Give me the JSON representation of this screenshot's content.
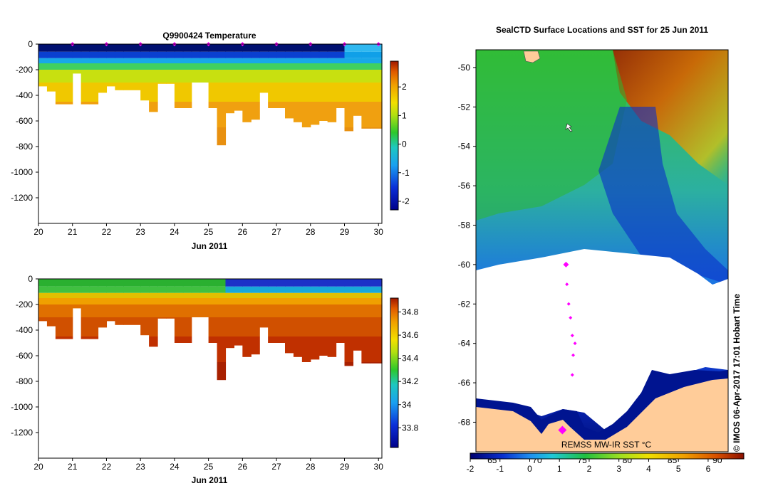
{
  "chart_data": [
    {
      "type": "heatmap",
      "title": "Q9900424  Temperature",
      "xlabel": "Jun 2011",
      "ylabel": "",
      "x_ticks": [
        "20",
        "21",
        "22",
        "23",
        "24",
        "25",
        "26",
        "27",
        "28",
        "29",
        "30"
      ],
      "x_range": [
        20,
        30.1
      ],
      "y_ticks": [
        "0",
        "-200",
        "-400",
        "-600",
        "-800",
        "-1000",
        "-1200"
      ],
      "y_range": [
        -1400,
        0
      ],
      "colorbar_ticks": [
        "-2",
        "-1",
        "0",
        "1",
        "2"
      ],
      "colorbar_range": [
        -2.3,
        2.9
      ],
      "profiles": [
        {
          "t": 20.0,
          "bottom": -330
        },
        {
          "t": 20.25,
          "bottom": -370
        },
        {
          "t": 20.5,
          "bottom": -470
        },
        {
          "t": 21.0,
          "bottom": -230
        },
        {
          "t": 21.25,
          "bottom": -470
        },
        {
          "t": 21.5,
          "bottom": -470
        },
        {
          "t": 21.75,
          "bottom": -380
        },
        {
          "t": 22.0,
          "bottom": -330
        },
        {
          "t": 22.25,
          "bottom": -360
        },
        {
          "t": 22.5,
          "bottom": -360
        },
        {
          "t": 23.0,
          "bottom": -440
        },
        {
          "t": 23.25,
          "bottom": -530
        },
        {
          "t": 23.5,
          "bottom": -310
        },
        {
          "t": 23.75,
          "bottom": -310
        },
        {
          "t": 24.0,
          "bottom": -500
        },
        {
          "t": 24.25,
          "bottom": -500
        },
        {
          "t": 24.5,
          "bottom": -300
        },
        {
          "t": 24.75,
          "bottom": -300
        },
        {
          "t": 25.0,
          "bottom": -500
        },
        {
          "t": 25.25,
          "bottom": -790
        },
        {
          "t": 25.5,
          "bottom": -540
        },
        {
          "t": 25.75,
          "bottom": -520
        },
        {
          "t": 26.0,
          "bottom": -610
        },
        {
          "t": 26.25,
          "bottom": -590
        },
        {
          "t": 26.5,
          "bottom": -380
        },
        {
          "t": 26.75,
          "bottom": -500
        },
        {
          "t": 27.0,
          "bottom": -500
        },
        {
          "t": 27.25,
          "bottom": -580
        },
        {
          "t": 27.5,
          "bottom": -610
        },
        {
          "t": 27.75,
          "bottom": -650
        },
        {
          "t": 28.0,
          "bottom": -630
        },
        {
          "t": 28.25,
          "bottom": -600
        },
        {
          "t": 28.5,
          "bottom": -610
        },
        {
          "t": 28.75,
          "bottom": -500
        },
        {
          "t": 29.0,
          "bottom": -680
        },
        {
          "t": 29.25,
          "bottom": -560
        },
        {
          "t": 29.5,
          "bottom": -660
        },
        {
          "t": 29.75,
          "bottom": -660
        }
      ],
      "surface_markers": [
        21,
        22,
        23,
        24,
        25,
        26,
        27,
        28,
        29,
        30
      ]
    },
    {
      "type": "heatmap",
      "title": "",
      "xlabel": "Jun 2011",
      "ylabel": "",
      "x_ticks": [
        "20",
        "21",
        "22",
        "23",
        "24",
        "25",
        "26",
        "27",
        "28",
        "29",
        "30"
      ],
      "x_range": [
        20,
        30.1
      ],
      "y_ticks": [
        "0",
        "-200",
        "-400",
        "-600",
        "-800",
        "-1000",
        "-1200"
      ],
      "y_range": [
        -1400,
        0
      ],
      "colorbar_ticks": [
        "33.8",
        "34",
        "34.2",
        "34.4",
        "34.6",
        "34.8"
      ],
      "colorbar_range": [
        33.63,
        34.92
      ]
    },
    {
      "type": "heatmap",
      "title": "SealCTD Surface Locations and SST for 25 Jun 2011",
      "y_ticks": [
        "-50",
        "-52",
        "-54",
        "-56",
        "-58",
        "-60",
        "-62",
        "-64",
        "-66",
        "-68"
      ],
      "y_range": [
        -69.5,
        -49.1
      ],
      "colorbar_ticks": [
        "-2",
        "-1",
        "0",
        "1",
        "2",
        "3",
        "4",
        "5",
        "6"
      ],
      "colorbar_range": [
        -2,
        7.2
      ],
      "longitude_labels": [
        "65",
        "70",
        "75",
        "80",
        "85",
        "90"
      ],
      "colorbar_caption": "REMSS MW-IR SST °C",
      "side_label": "© IMOS 06-Apr-2017 17:01 Hobart Time",
      "track_points": [
        {
          "lon": 73.2,
          "lat": -60.0
        },
        {
          "lon": 73.3,
          "lat": -61.0
        },
        {
          "lon": 73.5,
          "lat": -62.0
        },
        {
          "lon": 73.7,
          "lat": -62.7
        },
        {
          "lon": 73.9,
          "lat": -63.6
        },
        {
          "lon": 74.2,
          "lat": -64.0
        },
        {
          "lon": 74.0,
          "lat": -64.6
        },
        {
          "lon": 73.9,
          "lat": -65.6
        },
        {
          "lon": 72.8,
          "lat": -68.4
        }
      ]
    }
  ]
}
